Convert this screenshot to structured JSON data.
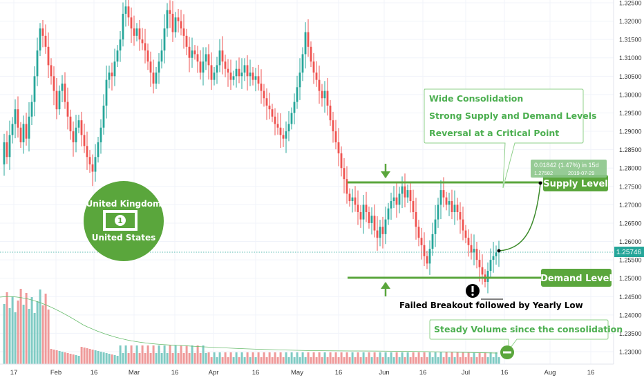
{
  "chart_data": {
    "type": "candlestick",
    "title": "",
    "xlabel": "",
    "ylabel": "",
    "ylim": [
      1.2255,
      1.326
    ],
    "grid": true,
    "y_ticks": [
      "1.32500",
      "1.32000",
      "1.31500",
      "1.31000",
      "1.30500",
      "1.30000",
      "1.29500",
      "1.29000",
      "1.28500",
      "1.28000",
      "1.27500",
      "1.27000",
      "1.26500",
      "1.26000",
      "1.25500",
      "1.25000",
      "1.24500",
      "1.24000",
      "1.23500",
      "1.23000"
    ],
    "x_ticks": [
      "17",
      "Feb",
      "16",
      "Mar",
      "16",
      "Apr",
      "16",
      "May",
      "16",
      "Jun",
      "16",
      "Jul",
      "16",
      "Aug",
      "16"
    ],
    "current_price": "1.25746",
    "supply_level": 1.2763,
    "demand_level": 1.2503,
    "measure_label": "0.01842 (1.47%) in 15d",
    "measure_sub_label": "1.27582",
    "measure_date": "2019-07-29",
    "colors": {
      "up": "#26a69a",
      "down": "#ef5350",
      "up_volume": "#80cbc4",
      "down_volume": "#ef9a9a",
      "annotation": "#4caf50",
      "annotation_text": "#4caf50",
      "current_price": "#26a69a"
    }
  },
  "annotations": {
    "box_lines": [
      "Wide Consolidation",
      "Strong Supply and Demand Levels",
      "Reversal at a Critical Point"
    ],
    "supply_label": "Supply Level",
    "demand_label": "Demand Level",
    "failed_breakout": "Failed Breakout followed by Yearly Low",
    "volume_note": "Steady Volume since the consolidation",
    "badge_top": "United Kingdom",
    "badge_bottom": "United States",
    "badge_icon": "dollar-bill-icon",
    "exclamation_icon": "exclamation-icon",
    "minus_icon": "minus-circle-icon"
  }
}
